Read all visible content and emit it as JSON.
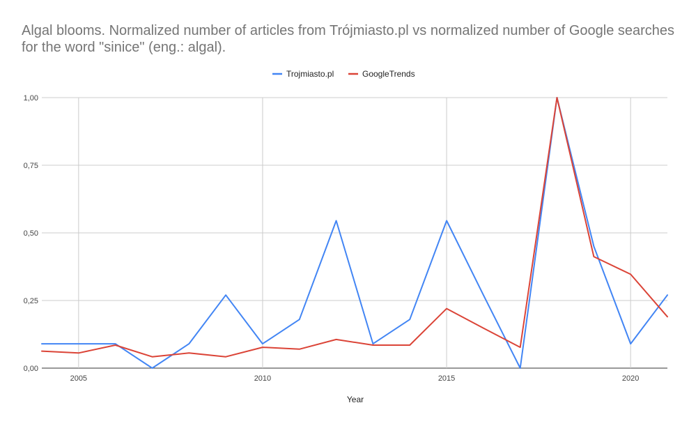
{
  "chart_data": {
    "type": "line",
    "title": "Algal blooms. Normalized number of articles from Trójmiasto.pl vs normalized number of Google searches for the word \"sinice\" (eng.: algal).",
    "xlabel": "Year",
    "ylabel": "",
    "x": [
      2004,
      2005,
      2006,
      2007,
      2008,
      2009,
      2010,
      2011,
      2012,
      2013,
      2014,
      2015,
      2016,
      2017,
      2018,
      2019,
      2020,
      2021
    ],
    "xlim": [
      2004,
      2021
    ],
    "ylim": [
      0,
      1
    ],
    "x_ticks": [
      2005,
      2010,
      2015,
      2020
    ],
    "y_ticks": [
      0,
      0.25,
      0.5,
      0.75,
      1
    ],
    "y_tick_labels": [
      "0,00",
      "0,25",
      "0,50",
      "0,75",
      "1,00"
    ],
    "grid": true,
    "legend_position": "top",
    "series": [
      {
        "name": "Trojmiasto.pl",
        "color": "#4285f4",
        "values": [
          0.09,
          0.09,
          0.09,
          0.0,
          0.09,
          0.27,
          0.09,
          0.18,
          0.545,
          0.09,
          0.18,
          0.545,
          0.27,
          0.0,
          1.0,
          0.45,
          0.09,
          0.27
        ]
      },
      {
        "name": "GoogleTrends",
        "color": "#db4437",
        "values": [
          0.063,
          0.056,
          0.085,
          0.042,
          0.056,
          0.042,
          0.077,
          0.07,
          0.106,
          0.085,
          0.085,
          0.22,
          0.148,
          0.077,
          1.0,
          0.412,
          0.347,
          0.19
        ]
      }
    ]
  }
}
